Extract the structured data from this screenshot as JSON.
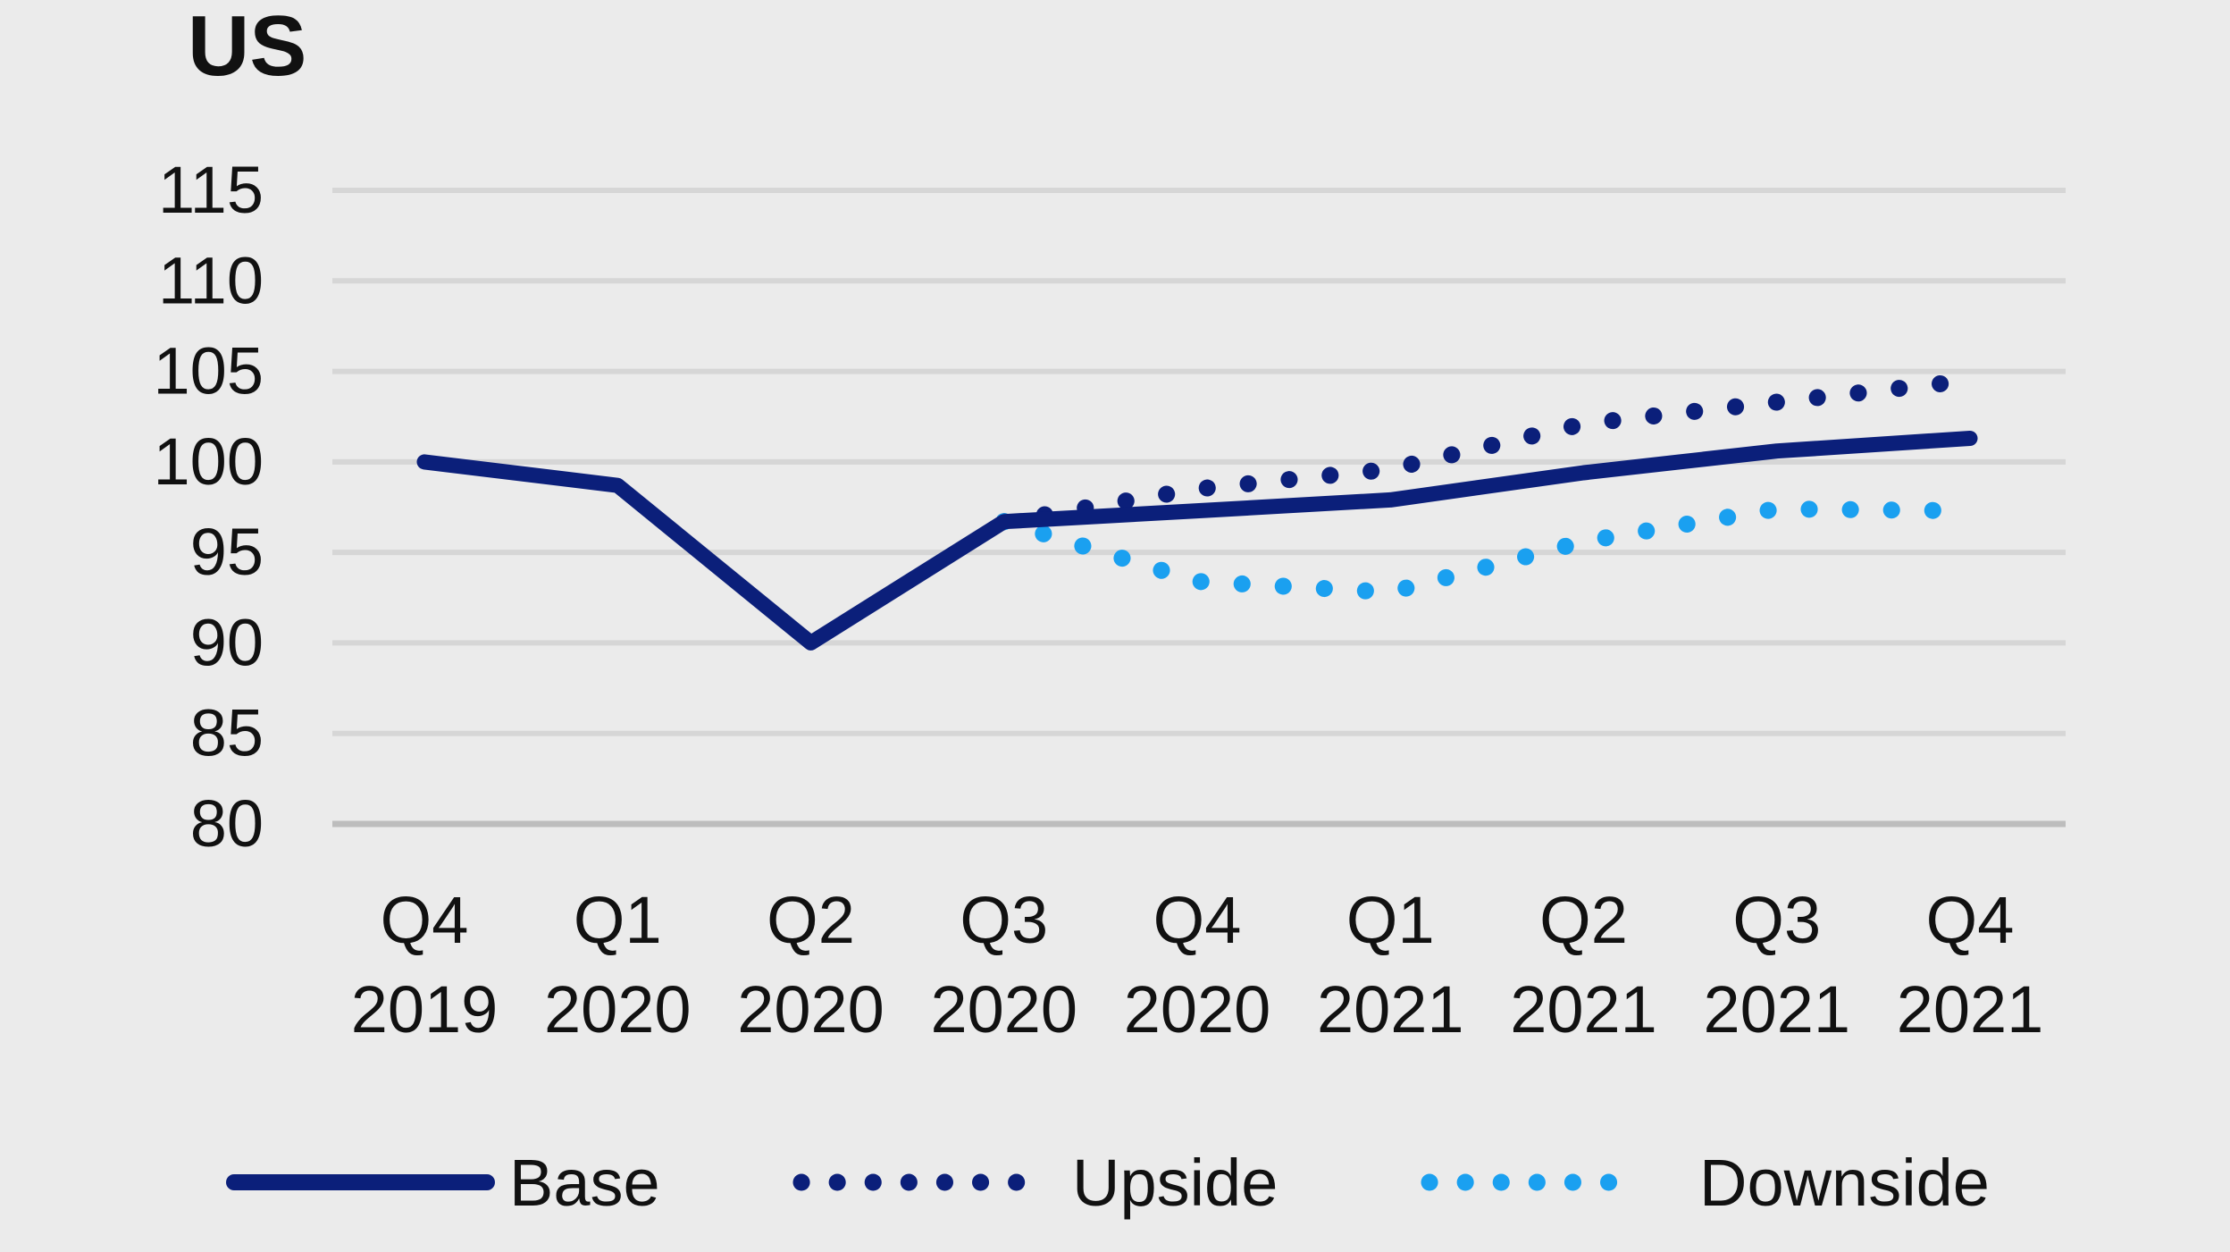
{
  "chart_data": {
    "type": "line",
    "title": "US",
    "xlabel": "",
    "ylabel": "",
    "ylim": [
      80,
      115
    ],
    "yticks": [
      80,
      85,
      90,
      95,
      100,
      105,
      110,
      115
    ],
    "grid": true,
    "legend_position": "bottom",
    "categories": [
      [
        "Q4",
        "2019"
      ],
      [
        "Q1",
        "2020"
      ],
      [
        "Q2",
        "2020"
      ],
      [
        "Q3",
        "2020"
      ],
      [
        "Q4",
        "2020"
      ],
      [
        "Q1",
        "2021"
      ],
      [
        "Q2",
        "2021"
      ],
      [
        "Q3",
        "2021"
      ],
      [
        "Q4",
        "2021"
      ]
    ],
    "series": [
      {
        "name": "Base",
        "style": "solid",
        "color": "#0b1f7a",
        "values": [
          100.0,
          98.7,
          90.0,
          96.7,
          97.3,
          97.9,
          99.4,
          100.6,
          101.3
        ]
      },
      {
        "name": "Upside",
        "style": "dotted",
        "color": "#0b1f7a",
        "values": [
          null,
          null,
          null,
          96.7,
          98.5,
          99.6,
          102.1,
          103.3,
          104.5
        ]
      },
      {
        "name": "Downside",
        "style": "dotted",
        "color": "#1aa0f0",
        "values": [
          null,
          null,
          null,
          96.7,
          93.4,
          92.8,
          95.6,
          97.4,
          97.3
        ]
      }
    ]
  }
}
